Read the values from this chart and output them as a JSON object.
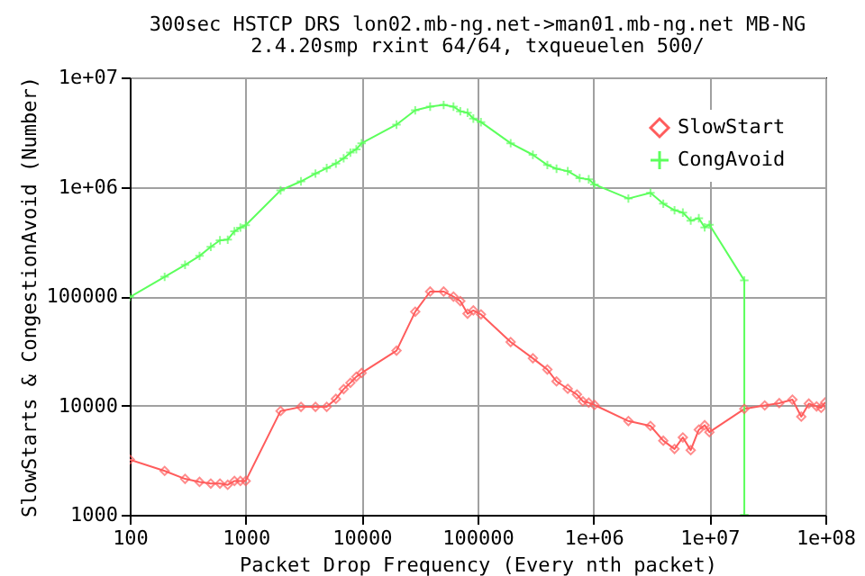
{
  "chart_data": {
    "type": "line",
    "title": "300sec HSTCP DRS lon02.mb-ng.net->man01.mb-ng.net MB-NG",
    "subtitle": "2.4.20smp rxint 64/64, txqueuelen 500/",
    "xlabel": "Packet Drop Frequency (Every nth packet)",
    "ylabel": "SlowStarts & CongestionAvoid (Number)",
    "log": "xy",
    "grid": true,
    "legend": "top right",
    "xlim": [
      100,
      100000000
    ],
    "xticks": [
      100,
      1000,
      10000,
      100000,
      {
        "value": 1000000,
        "label": "1e+06"
      },
      {
        "value": 10000000,
        "label": "1e+07"
      },
      {
        "value": 100000000,
        "label": "1e+08"
      }
    ],
    "ylim": [
      1000,
      10000000
    ],
    "yticks": [
      1000,
      10000,
      100000,
      {
        "value": 1000000,
        "label": "1e+06"
      },
      {
        "value": 10000000,
        "label": "1e+07"
      }
    ],
    "series": [
      {
        "name": "SlowStart",
        "color": "#ff5c5c",
        "marker": "diamond",
        "x": [
          100,
          200,
          300,
          400,
          500,
          600,
          700,
          800,
          900,
          1000,
          2000,
          3000,
          4000,
          5000,
          6000,
          7000,
          8000,
          9000,
          10000,
          20000,
          29000,
          39000,
          51000,
          62000,
          71000,
          82000,
          92000,
          107000,
          193000,
          300000,
          400000,
          480000,
          600000,
          720000,
          810000,
          910000,
          1020000,
          2000000,
          3100000,
          4000000,
          5000000,
          5900000,
          6900000,
          8100000,
          9100000,
          10000000,
          20000000,
          30000000,
          40000000,
          52000000,
          62000000,
          72000000,
          84000000,
          92000000,
          100000000
        ],
        "values": [
          3200,
          2520,
          2130,
          2000,
          1930,
          1930,
          1880,
          2040,
          2040,
          2040,
          8900,
          9700,
          9700,
          9700,
          11500,
          14100,
          16100,
          18300,
          19800,
          31700,
          72000,
          110000,
          110000,
          99000,
          90000,
          69000,
          74000,
          68000,
          38000,
          27000,
          21300,
          16600,
          14200,
          12600,
          10900,
          10600,
          10100,
          7200,
          6500,
          4760,
          4000,
          5100,
          3900,
          6000,
          6600,
          5700,
          9300,
          10000,
          10500,
          11300,
          7900,
          10400,
          9800,
          9500,
          10700
        ]
      },
      {
        "name": "CongAvoid",
        "color": "#5cff5c",
        "marker": "cross",
        "x": [
          100,
          200,
          300,
          400,
          500,
          600,
          700,
          800,
          900,
          1000,
          2000,
          3000,
          4000,
          5000,
          6000,
          7000,
          8000,
          9000,
          10000,
          20000,
          29000,
          39000,
          51000,
          62000,
          71000,
          82000,
          92000,
          107000,
          193000,
          300000,
          400000,
          480000,
          600000,
          760000,
          910000,
          1020000,
          2000000,
          3100000,
          4000000,
          5000000,
          5900000,
          6900000,
          8100000,
          9100000,
          10000000,
          20000000,
          20000000
        ],
        "values": [
          98000,
          150000,
          193000,
          233000,
          282000,
          324000,
          328000,
          392000,
          423000,
          445000,
          927000,
          1120000,
          1320000,
          1480000,
          1630000,
          1820000,
          2050000,
          2200000,
          2500000,
          3700000,
          5000000,
          5400000,
          5600000,
          5400000,
          4900000,
          4750000,
          4200000,
          3900000,
          2500000,
          1960000,
          1580000,
          1460000,
          1390000,
          1200000,
          1170000,
          1050000,
          780000,
          880000,
          700000,
          610000,
          580000,
          490000,
          515000,
          425000,
          450000,
          139000,
          1000
        ]
      }
    ]
  }
}
